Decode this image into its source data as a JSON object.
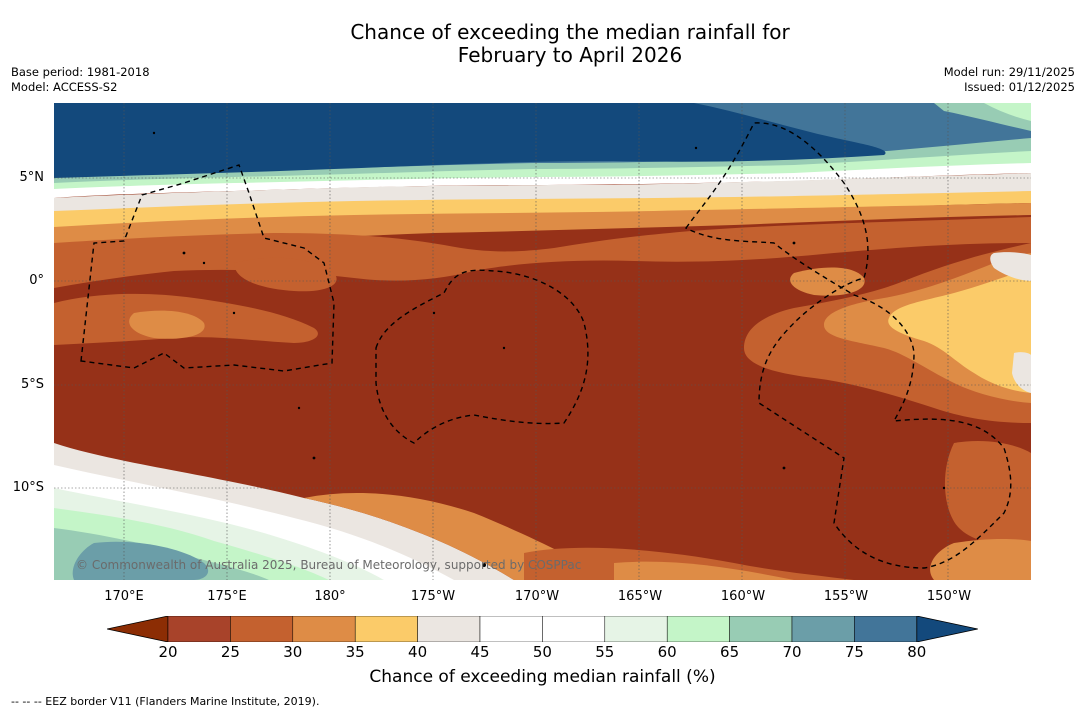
{
  "title": {
    "line1": "Chance of exceeding the median rainfall for",
    "line2": "February to April 2026"
  },
  "meta": {
    "base_period": "Base period: 1981-2018",
    "model": "Model: ACCESS-S2",
    "model_run": "Model run: 29/11/2025",
    "issued": "Issued: 01/12/2025"
  },
  "map": {
    "lat_labels": [
      "5°N",
      "0°",
      "5°S",
      "10°S"
    ],
    "lon_labels": [
      "170°E",
      "175°E",
      "180°",
      "175°W",
      "170°W",
      "165°W",
      "160°W",
      "155°W",
      "150°W"
    ],
    "copyright": "© Commonwealth of Australia 2025, Bureau of Meteorology, supported by COSPPac"
  },
  "colorbar": {
    "ticks": [
      "20",
      "25",
      "30",
      "35",
      "40",
      "45",
      "50",
      "55",
      "60",
      "65",
      "70",
      "75",
      "80"
    ],
    "colors": [
      "#8c2d04",
      "#a8432a",
      "#c4612f",
      "#de8c46",
      "#fbcb69",
      "#ebe6e1",
      "#ffffff",
      "#ffffff",
      "#e6f4e6",
      "#c4f5c8",
      "#98ccb4",
      "#6b9ea8",
      "#427599",
      "#13497c"
    ],
    "label": "Chance of exceeding median rainfall (%)"
  },
  "footer": "-- -- -- EEZ border V11 (Flanders Marine Institute, 2019).",
  "legend_colors": {
    "deep_dry": "#963118",
    "mid_dry": "#c4612f",
    "light_dry": "#de8c46",
    "pale_dry": "#fbcb69",
    "neutral": "#ebe6e1",
    "wet_blue": "#13497c"
  }
}
